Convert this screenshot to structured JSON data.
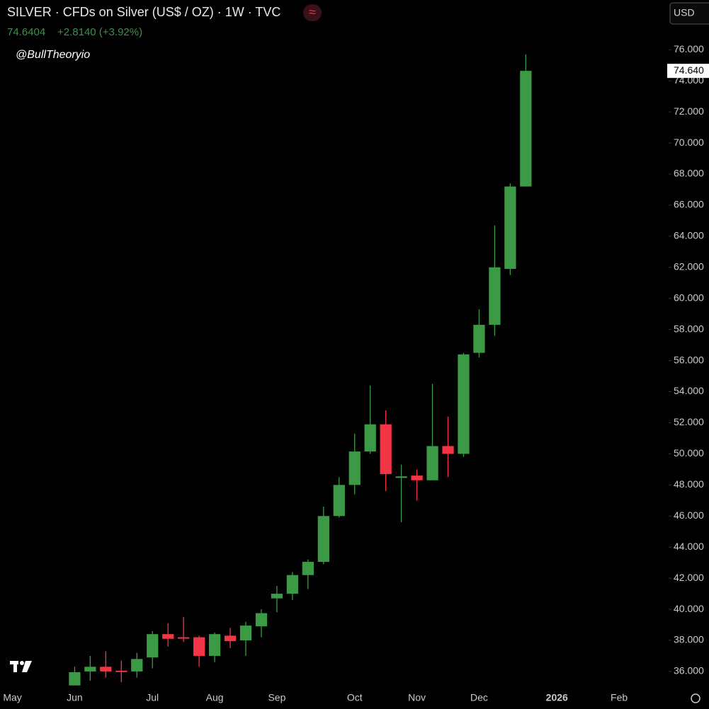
{
  "chart_data": {
    "type": "candlestick",
    "title": "SILVER · CFDs on Silver (US$ / OZ) · 1W · TVC",
    "price": "74.6404",
    "change": "+2.8140 (+3.92%)",
    "watermark": "@BullTheoryio",
    "currency": "USD",
    "last_label": "74.640",
    "up_color": "#3c9a46",
    "down_color": "#f23645",
    "x": [
      0,
      1,
      2,
      3,
      4,
      5,
      6,
      7,
      8,
      9,
      10,
      11,
      12,
      13,
      14,
      15,
      16,
      17,
      18,
      19,
      20,
      21,
      22,
      23,
      24,
      25,
      26,
      27,
      28,
      29
    ],
    "open": [
      35.1,
      36.0,
      36.3,
      36.05,
      36.0,
      36.9,
      38.4,
      38.2,
      38.2,
      37.0,
      38.3,
      38.0,
      38.9,
      40.7,
      41.0,
      42.2,
      43.05,
      46.0,
      48.0,
      50.15,
      51.9,
      48.45,
      48.6,
      48.3,
      50.5,
      50.0,
      56.5,
      58.3,
      61.9,
      67.2
    ],
    "high": [
      36.3,
      37.0,
      37.3,
      36.7,
      37.2,
      38.6,
      39.1,
      39.5,
      38.3,
      38.5,
      38.8,
      39.2,
      40.0,
      41.5,
      42.4,
      43.2,
      46.6,
      48.5,
      51.3,
      54.4,
      52.8,
      49.3,
      49.0,
      54.5,
      52.4,
      56.5,
      59.3,
      64.7,
      67.4,
      75.7
    ],
    "low": [
      35.1,
      35.4,
      35.6,
      35.3,
      35.6,
      36.2,
      37.6,
      37.9,
      36.3,
      36.6,
      37.5,
      37.0,
      38.2,
      39.8,
      40.6,
      41.3,
      42.9,
      45.9,
      47.4,
      50.0,
      47.6,
      45.6,
      47.0,
      48.3,
      48.5,
      49.8,
      56.2,
      57.6,
      61.5,
      67.2
    ],
    "close": [
      35.95,
      36.3,
      36.0,
      36.0,
      36.8,
      38.4,
      38.1,
      38.15,
      37.0,
      38.4,
      37.95,
      38.95,
      39.75,
      41.0,
      42.2,
      43.05,
      46.0,
      48.0,
      50.15,
      51.9,
      48.7,
      48.55,
      48.3,
      50.5,
      50.0,
      56.4,
      58.3,
      62.0,
      67.2,
      74.6404
    ],
    "xlim": [
      -4.8,
      38
    ],
    "xticks": [
      {
        "value": -4,
        "label": "May"
      },
      {
        "value": 0,
        "label": "Jun"
      },
      {
        "value": 5,
        "label": "Jul"
      },
      {
        "value": 9,
        "label": "Aug"
      },
      {
        "value": 13,
        "label": "Sep"
      },
      {
        "value": 18,
        "label": "Oct"
      },
      {
        "value": 22,
        "label": "Nov"
      },
      {
        "value": 26,
        "label": "Dec"
      },
      {
        "value": 31,
        "label": "2026"
      },
      {
        "value": 35,
        "label": "Feb"
      }
    ],
    "ylim": [
      35.04,
      79.2
    ],
    "yticks": [
      {
        "value": 36,
        "label": "36.000"
      },
      {
        "value": 38,
        "label": "38.000"
      },
      {
        "value": 40,
        "label": "40.000"
      },
      {
        "value": 42,
        "label": "42.000"
      },
      {
        "value": 44,
        "label": "44.000"
      },
      {
        "value": 46,
        "label": "46.000"
      },
      {
        "value": 48,
        "label": "48.000"
      },
      {
        "value": 50,
        "label": "50.000"
      },
      {
        "value": 52,
        "label": "52.000"
      },
      {
        "value": 54,
        "label": "54.000"
      },
      {
        "value": 56,
        "label": "56.000"
      },
      {
        "value": 58,
        "label": "58.000"
      },
      {
        "value": 60,
        "label": "60.000"
      },
      {
        "value": 62,
        "label": "62.000"
      },
      {
        "value": 64,
        "label": "64.000"
      },
      {
        "value": 66,
        "label": "66.000"
      },
      {
        "value": 68,
        "label": "68.000"
      },
      {
        "value": 70,
        "label": "70.000"
      },
      {
        "value": 72,
        "label": "72.000"
      },
      {
        "value": 74,
        "label": "74.000"
      },
      {
        "value": 76,
        "label": "76.000"
      }
    ]
  }
}
